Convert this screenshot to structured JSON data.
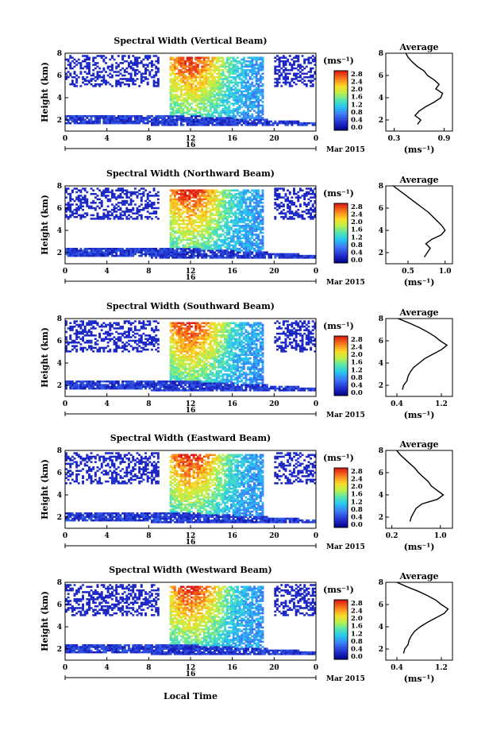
{
  "chart_data": {
    "type": "heatmap",
    "title": "",
    "xlabel": "Local Time",
    "date_label": "16",
    "month_label": "Mar 2015",
    "x_ticks": [
      "0",
      "4",
      "8",
      "12",
      "16",
      "20",
      "0"
    ],
    "xlim": [
      0,
      24
    ],
    "ylabel": "Height (km)",
    "y_ticks": [
      "2",
      "4",
      "6",
      "8"
    ],
    "ylim": [
      1,
      8
    ],
    "unit_label": "(ms⁻¹)",
    "average_title": "Average",
    "average_unit": "(ms⁻¹)",
    "panels": [
      {
        "title": "Spectral Width (Vertical Beam)",
        "colorbar_ticks": [
          "2.8",
          "2.4",
          "2.0",
          "1.6",
          "1.2",
          "0.8",
          "0.4",
          "0.0"
        ],
        "colorbar_max": 2.8,
        "avg_ticks": [
          "0.3",
          "0.9"
        ],
        "avg_xlim": [
          0.2,
          1.0
        ],
        "avg_heights": [
          1.6,
          2.0,
          2.4,
          2.8,
          3.2,
          3.6,
          4.0,
          4.4,
          4.8,
          5.2,
          5.6,
          6.0,
          6.4,
          6.8,
          7.2,
          7.6,
          8.0
        ],
        "avg_values": [
          0.58,
          0.62,
          0.55,
          0.6,
          0.68,
          0.78,
          0.86,
          0.88,
          0.8,
          0.84,
          0.78,
          0.7,
          0.66,
          0.58,
          0.52,
          0.47,
          0.44
        ]
      },
      {
        "title": "Spectral Width (Northward Beam)",
        "colorbar_ticks": [
          "2.8",
          "2.4",
          "2.0",
          "1.6",
          "1.2",
          "0.8",
          "0.4",
          "0.0"
        ],
        "colorbar_max": 2.8,
        "avg_ticks": [
          "0.5",
          "1.0"
        ],
        "avg_xlim": [
          0.2,
          1.1
        ],
        "avg_heights": [
          1.6,
          2.0,
          2.4,
          2.8,
          3.2,
          3.6,
          4.0,
          4.4,
          4.8,
          5.2,
          5.6,
          6.0,
          6.4,
          6.8,
          7.2,
          7.6,
          8.0
        ],
        "avg_values": [
          0.72,
          0.76,
          0.8,
          0.74,
          0.82,
          0.95,
          1.0,
          0.96,
          0.9,
          0.84,
          0.78,
          0.7,
          0.62,
          0.54,
          0.46,
          0.38,
          0.3
        ]
      },
      {
        "title": "Spectral Width (Southward Beam)",
        "colorbar_ticks": [
          "2.8",
          "2.4",
          "2.0",
          "1.6",
          "1.2",
          "0.8",
          "0.4",
          "0.0"
        ],
        "colorbar_max": 2.8,
        "avg_ticks": [
          "0.4",
          "1.2"
        ],
        "avg_xlim": [
          0.2,
          1.4
        ],
        "avg_heights": [
          1.6,
          2.0,
          2.4,
          2.8,
          3.2,
          3.6,
          4.0,
          4.4,
          4.8,
          5.2,
          5.6,
          6.0,
          6.4,
          6.8,
          7.2,
          7.6,
          8.0
        ],
        "avg_values": [
          0.5,
          0.52,
          0.58,
          0.6,
          0.64,
          0.7,
          0.8,
          0.9,
          1.05,
          1.2,
          1.3,
          1.18,
          1.08,
          0.95,
          0.8,
          0.62,
          0.42
        ]
      },
      {
        "title": "Spectral Width (Eastward Beam)",
        "colorbar_ticks": [
          "2.8",
          "2.4",
          "2.0",
          "1.6",
          "1.2",
          "0.8",
          "0.4",
          "0.0"
        ],
        "colorbar_max": 2.8,
        "avg_ticks": [
          "0.2",
          "1.0"
        ],
        "avg_xlim": [
          0.1,
          1.2
        ],
        "avg_heights": [
          1.6,
          2.0,
          2.4,
          2.8,
          3.2,
          3.6,
          4.0,
          4.4,
          4.8,
          5.2,
          5.6,
          6.0,
          6.4,
          6.8,
          7.2,
          7.6,
          8.0
        ],
        "avg_values": [
          0.5,
          0.52,
          0.56,
          0.6,
          0.7,
          0.95,
          1.05,
          0.95,
          0.85,
          0.8,
          0.72,
          0.64,
          0.58,
          0.5,
          0.42,
          0.34,
          0.28
        ]
      },
      {
        "title": "Spectral Width (Westward Beam)",
        "colorbar_ticks": [
          "2.8",
          "2.4",
          "2.0",
          "1.6",
          "1.2",
          "0.8",
          "0.4",
          "0.0"
        ],
        "colorbar_max": 2.8,
        "avg_ticks": [
          "0.4",
          "1.2"
        ],
        "avg_xlim": [
          0.2,
          1.4
        ],
        "avg_heights": [
          1.6,
          2.0,
          2.4,
          2.8,
          3.2,
          3.6,
          4.0,
          4.4,
          4.8,
          5.2,
          5.6,
          6.0,
          6.4,
          6.8,
          7.2,
          7.6,
          8.0
        ],
        "avg_values": [
          0.52,
          0.54,
          0.6,
          0.62,
          0.66,
          0.72,
          0.82,
          0.95,
          1.1,
          1.25,
          1.32,
          1.2,
          1.1,
          0.95,
          0.78,
          0.58,
          0.4
        ]
      }
    ]
  }
}
